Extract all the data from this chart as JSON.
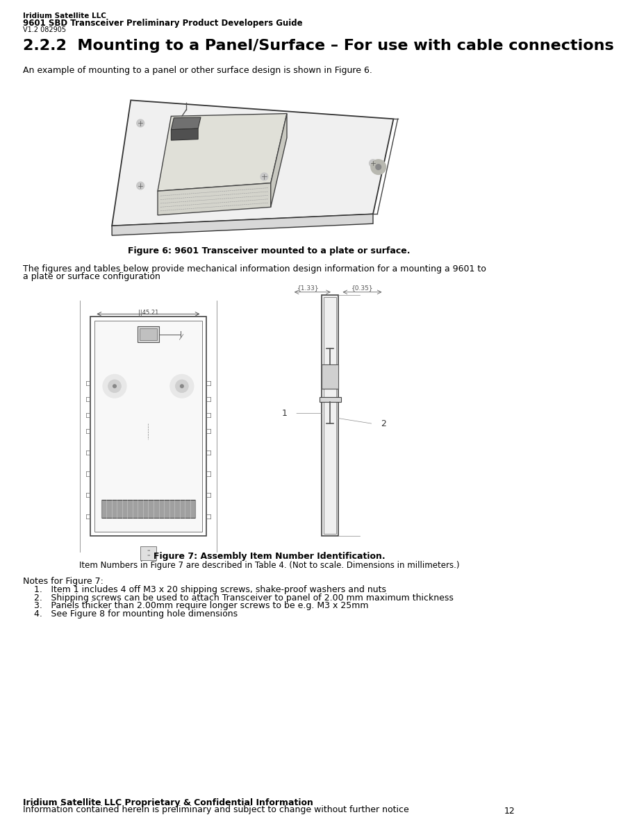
{
  "bg_color": "#ffffff",
  "header_line1": "Iridium Satellite LLC",
  "header_line2": "9601 SBD Transceiver Preliminary Product Developers Guide",
  "header_line3": "V1.2 082905",
  "section_title": "2.2.2  Mounting to a Panel/Surface – For use with cable connections",
  "para1": "An example of mounting to a panel or other surface design is shown in Figure 6.",
  "fig6_caption": "Figure 6: 9601 Transceiver mounted to a plate or surface.",
  "para2_line1": "The figures and tables below provide mechanical information design information for a mounting a 9601 to",
  "para2_line2": "a plate or surface configuration",
  "fig7_caption_bold": "Figure 7: Assembly Item Number Identification.",
  "fig7_caption_normal": "Item Numbers in Figure 7 are described in Table 4. (Not to scale. Dimensions in millimeters.)",
  "notes_header": "Notes for Figure 7:",
  "notes": [
    "Item 1 includes 4 off M3 x 20 shipping screws, shake-proof washers and nuts",
    "Shipping screws can be used to attach Transceiver to panel of 2.00 mm maximum thickness",
    "Panels thicker than 2.00mm require longer screws to be e.g. M3 x 25mm",
    "See Figure 8 for mounting hole dimensions"
  ],
  "footer_bold": "Iridium Satellite LLC Proprietary & Confidential Information",
  "footer_normal": "Information contained herein is preliminary and subject to change without further notice",
  "page_number": "12",
  "text_color": "#000000",
  "line_color": "#555555",
  "dim_label_133": "{1.33}",
  "dim_label_035": "{0.35}",
  "pcb_dim_label": "||45.21"
}
